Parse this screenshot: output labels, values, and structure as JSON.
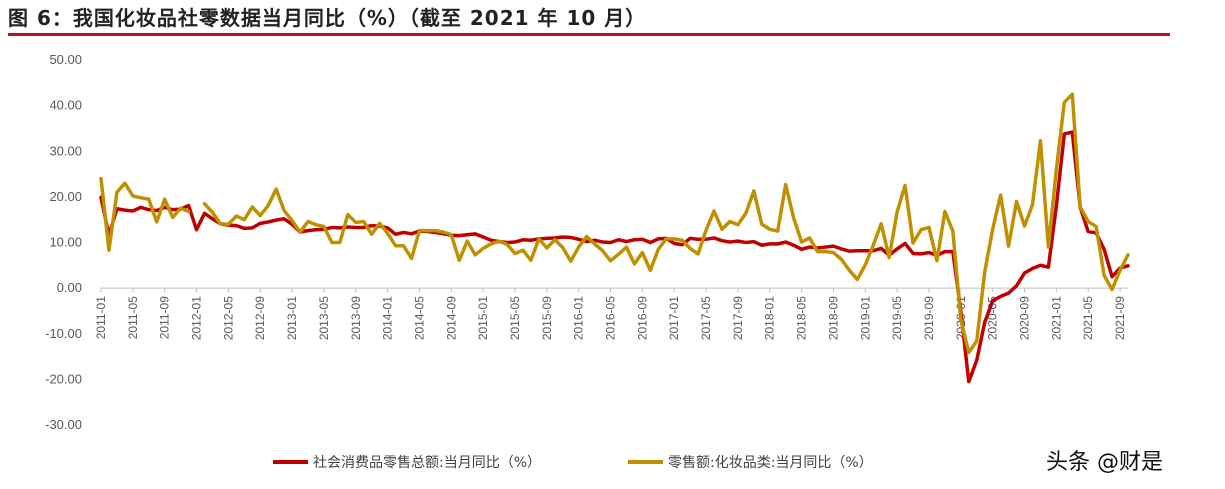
{
  "title": "图 6：我国化妆品社零数据当月同比（%）（截至 2021 年 10 月）",
  "watermark": "头条 @财是",
  "colors": {
    "title_rule": "#b3151b",
    "series_total": "#c00000",
    "series_cosmetics": "#bf9000",
    "axis": "#bfbfbf"
  },
  "chart_data": {
    "type": "line",
    "title": "",
    "xlabel": "",
    "ylabel": "",
    "ylim": [
      -30,
      50
    ],
    "y_ticks": [
      "50.00",
      "40.00",
      "30.00",
      "20.00",
      "10.00",
      "0.00",
      "-10.00",
      "-20.00",
      "-30.00"
    ],
    "grid": false,
    "legend_position": "bottom",
    "x_tick_labels": [
      "2011-01",
      "2011-05",
      "2011-09",
      "2012-01",
      "2012-05",
      "2012-09",
      "2013-01",
      "2013-05",
      "2013-09",
      "2014-01",
      "2014-05",
      "2014-09",
      "2015-01",
      "2015-05",
      "2015-09",
      "2016-01",
      "2016-05",
      "2016-09",
      "2017-01",
      "2017-05",
      "2017-09",
      "2018-01",
      "2018-05",
      "2018-09",
      "2019-01",
      "2019-05",
      "2019-09",
      "2020-01",
      "2020-05",
      "2020-09",
      "2021-01",
      "2021-05",
      "2021-09"
    ],
    "x_start": "2011-01",
    "x_end": "2021-10",
    "series": [
      {
        "name": "社会消费品零售总额:当月同比（%）",
        "color": "#c00000",
        "points": [
          [
            "2011-01",
            19.9
          ],
          [
            "2011-02",
            11.6
          ],
          [
            "2011-03",
            17.4
          ],
          [
            "2011-04",
            17.1
          ],
          [
            "2011-05",
            16.9
          ],
          [
            "2011-06",
            17.7
          ],
          [
            "2011-07",
            17.2
          ],
          [
            "2011-08",
            17.0
          ],
          [
            "2011-09",
            17.7
          ],
          [
            "2011-10",
            17.2
          ],
          [
            "2011-11",
            17.3
          ],
          [
            "2011-12",
            18.1
          ],
          [
            "2012-01",
            12.8
          ],
          [
            "2012-02",
            16.4
          ],
          [
            "2012-03",
            15.2
          ],
          [
            "2012-04",
            14.1
          ],
          [
            "2012-05",
            13.8
          ],
          [
            "2012-06",
            13.7
          ],
          [
            "2012-07",
            13.1
          ],
          [
            "2012-08",
            13.2
          ],
          [
            "2012-09",
            14.2
          ],
          [
            "2012-10",
            14.5
          ],
          [
            "2012-11",
            14.9
          ],
          [
            "2012-12",
            15.2
          ],
          [
            "2013-01",
            14.0
          ],
          [
            "2013-02",
            12.3
          ],
          [
            "2013-03",
            12.6
          ],
          [
            "2013-04",
            12.8
          ],
          [
            "2013-05",
            12.9
          ],
          [
            "2013-06",
            13.3
          ],
          [
            "2013-07",
            13.2
          ],
          [
            "2013-08",
            13.4
          ],
          [
            "2013-09",
            13.3
          ],
          [
            "2013-10",
            13.3
          ],
          [
            "2013-11",
            13.7
          ],
          [
            "2013-12",
            13.6
          ],
          [
            "2014-01",
            13.2
          ],
          [
            "2014-02",
            11.8
          ],
          [
            "2014-03",
            12.2
          ],
          [
            "2014-04",
            11.9
          ],
          [
            "2014-05",
            12.5
          ],
          [
            "2014-06",
            12.4
          ],
          [
            "2014-07",
            12.2
          ],
          [
            "2014-08",
            11.9
          ],
          [
            "2014-09",
            11.6
          ],
          [
            "2014-10",
            11.5
          ],
          [
            "2014-11",
            11.7
          ],
          [
            "2014-12",
            11.9
          ],
          [
            "2015-01",
            11.2
          ],
          [
            "2015-02",
            10.5
          ],
          [
            "2015-03",
            10.2
          ],
          [
            "2015-04",
            10.0
          ],
          [
            "2015-05",
            10.1
          ],
          [
            "2015-06",
            10.6
          ],
          [
            "2015-07",
            10.5
          ],
          [
            "2015-08",
            10.8
          ],
          [
            "2015-09",
            10.9
          ],
          [
            "2015-10",
            11.0
          ],
          [
            "2015-11",
            11.2
          ],
          [
            "2015-12",
            11.1
          ],
          [
            "2016-01",
            10.7
          ],
          [
            "2016-02",
            10.2
          ],
          [
            "2016-03",
            10.5
          ],
          [
            "2016-04",
            10.1
          ],
          [
            "2016-05",
            10.0
          ],
          [
            "2016-06",
            10.6
          ],
          [
            "2016-07",
            10.2
          ],
          [
            "2016-08",
            10.6
          ],
          [
            "2016-09",
            10.7
          ],
          [
            "2016-10",
            10.0
          ],
          [
            "2016-11",
            10.8
          ],
          [
            "2016-12",
            10.9
          ],
          [
            "2017-01",
            9.8
          ],
          [
            "2017-02",
            9.5
          ],
          [
            "2017-03",
            10.9
          ],
          [
            "2017-04",
            10.7
          ],
          [
            "2017-05",
            10.7
          ],
          [
            "2017-06",
            11.0
          ],
          [
            "2017-07",
            10.4
          ],
          [
            "2017-08",
            10.1
          ],
          [
            "2017-09",
            10.3
          ],
          [
            "2017-10",
            10.0
          ],
          [
            "2017-11",
            10.2
          ],
          [
            "2017-12",
            9.4
          ],
          [
            "2018-01",
            9.7
          ],
          [
            "2018-02",
            9.7
          ],
          [
            "2018-03",
            10.1
          ],
          [
            "2018-04",
            9.4
          ],
          [
            "2018-05",
            8.5
          ],
          [
            "2018-06",
            9.0
          ],
          [
            "2018-07",
            8.8
          ],
          [
            "2018-08",
            9.0
          ],
          [
            "2018-09",
            9.2
          ],
          [
            "2018-10",
            8.6
          ],
          [
            "2018-11",
            8.1
          ],
          [
            "2018-12",
            8.2
          ],
          [
            "2019-01",
            8.2
          ],
          [
            "2019-02",
            8.2
          ],
          [
            "2019-03",
            8.7
          ],
          [
            "2019-04",
            7.2
          ],
          [
            "2019-05",
            8.6
          ],
          [
            "2019-06",
            9.8
          ],
          [
            "2019-07",
            7.6
          ],
          [
            "2019-08",
            7.5
          ],
          [
            "2019-09",
            7.8
          ],
          [
            "2019-10",
            7.2
          ],
          [
            "2019-11",
            8.0
          ],
          [
            "2019-12",
            8.0
          ],
          [
            "2020-01",
            -5.0
          ],
          [
            "2020-02",
            -20.5
          ],
          [
            "2020-03",
            -15.8
          ],
          [
            "2020-04",
            -7.5
          ],
          [
            "2020-05",
            -2.8
          ],
          [
            "2020-06",
            -1.8
          ],
          [
            "2020-07",
            -1.1
          ],
          [
            "2020-08",
            0.5
          ],
          [
            "2020-09",
            3.3
          ],
          [
            "2020-10",
            4.3
          ],
          [
            "2020-11",
            5.0
          ],
          [
            "2020-12",
            4.6
          ],
          [
            "2021-01",
            18.0
          ],
          [
            "2021-02",
            33.8
          ],
          [
            "2021-03",
            34.2
          ],
          [
            "2021-04",
            17.7
          ],
          [
            "2021-05",
            12.4
          ],
          [
            "2021-06",
            12.1
          ],
          [
            "2021-07",
            8.5
          ],
          [
            "2021-08",
            2.5
          ],
          [
            "2021-09",
            4.4
          ],
          [
            "2021-10",
            4.9
          ]
        ]
      },
      {
        "name": "零售额:化妆品类:当月同比（%）",
        "color": "#bf9000",
        "points": [
          [
            "2011-01",
            24.0
          ],
          [
            "2011-02",
            8.3
          ],
          [
            "2011-03",
            21.0
          ],
          [
            "2011-04",
            23.0
          ],
          [
            "2011-05",
            20.2
          ],
          [
            "2011-06",
            19.8
          ],
          [
            "2011-07",
            19.5
          ],
          [
            "2011-08",
            14.5
          ],
          [
            "2011-09",
            19.5
          ],
          [
            "2011-10",
            15.5
          ],
          [
            "2011-11",
            17.5
          ],
          [
            "2011-12",
            16.8
          ],
          [
            "2012-01",
            null
          ],
          [
            "2012-02",
            18.5
          ],
          [
            "2012-03",
            16.6
          ],
          [
            "2012-04",
            14.1
          ],
          [
            "2012-05",
            14.0
          ],
          [
            "2012-06",
            15.8
          ],
          [
            "2012-07",
            15.0
          ],
          [
            "2012-08",
            17.8
          ],
          [
            "2012-09",
            15.9
          ],
          [
            "2012-10",
            18.1
          ],
          [
            "2012-11",
            21.7
          ],
          [
            "2012-12",
            17.0
          ],
          [
            "2013-01",
            14.8
          ],
          [
            "2013-02",
            12.3
          ],
          [
            "2013-03",
            14.6
          ],
          [
            "2013-04",
            13.9
          ],
          [
            "2013-05",
            13.5
          ],
          [
            "2013-06",
            10.0
          ],
          [
            "2013-07",
            10.0
          ],
          [
            "2013-08",
            16.1
          ],
          [
            "2013-09",
            14.4
          ],
          [
            "2013-10",
            14.6
          ],
          [
            "2013-11",
            11.8
          ],
          [
            "2013-12",
            14.2
          ],
          [
            "2014-01",
            12.0
          ],
          [
            "2014-02",
            9.3
          ],
          [
            "2014-03",
            9.3
          ],
          [
            "2014-04",
            6.5
          ],
          [
            "2014-05",
            12.6
          ],
          [
            "2014-06",
            12.6
          ],
          [
            "2014-07",
            12.6
          ],
          [
            "2014-08",
            12.3
          ],
          [
            "2014-09",
            11.7
          ],
          [
            "2014-10",
            6.1
          ],
          [
            "2014-11",
            10.3
          ],
          [
            "2014-12",
            7.3
          ],
          [
            "2015-01",
            8.7
          ],
          [
            "2015-02",
            9.7
          ],
          [
            "2015-03",
            10.3
          ],
          [
            "2015-04",
            9.6
          ],
          [
            "2015-05",
            7.6
          ],
          [
            "2015-06",
            8.3
          ],
          [
            "2015-07",
            6.1
          ],
          [
            "2015-08",
            10.8
          ],
          [
            "2015-09",
            8.8
          ],
          [
            "2015-10",
            10.6
          ],
          [
            "2015-11",
            8.9
          ],
          [
            "2015-12",
            5.9
          ],
          [
            "2016-01",
            9.0
          ],
          [
            "2016-02",
            11.3
          ],
          [
            "2016-03",
            9.7
          ],
          [
            "2016-04",
            8.2
          ],
          [
            "2016-05",
            6.0
          ],
          [
            "2016-06",
            7.4
          ],
          [
            "2016-07",
            9.0
          ],
          [
            "2016-08",
            5.3
          ],
          [
            "2016-09",
            7.8
          ],
          [
            "2016-10",
            3.9
          ],
          [
            "2016-11",
            8.5
          ],
          [
            "2016-12",
            10.8
          ],
          [
            "2017-01",
            10.8
          ],
          [
            "2017-02",
            10.5
          ],
          [
            "2017-03",
            8.7
          ],
          [
            "2017-04",
            7.5
          ],
          [
            "2017-05",
            12.7
          ],
          [
            "2017-06",
            16.9
          ],
          [
            "2017-07",
            12.9
          ],
          [
            "2017-08",
            14.6
          ],
          [
            "2017-09",
            13.9
          ],
          [
            "2017-10",
            16.4
          ],
          [
            "2017-11",
            21.3
          ],
          [
            "2017-12",
            14.0
          ],
          [
            "2018-01",
            12.9
          ],
          [
            "2018-02",
            12.5
          ],
          [
            "2018-03",
            22.7
          ],
          [
            "2018-04",
            15.4
          ],
          [
            "2018-05",
            10.1
          ],
          [
            "2018-06",
            11.0
          ],
          [
            "2018-07",
            8.0
          ],
          [
            "2018-08",
            8.0
          ],
          [
            "2018-09",
            7.8
          ],
          [
            "2018-10",
            6.3
          ],
          [
            "2018-11",
            3.9
          ],
          [
            "2018-12",
            1.9
          ],
          [
            "2019-01",
            5.1
          ],
          [
            "2019-02",
            9.4
          ],
          [
            "2019-03",
            14.1
          ],
          [
            "2019-04",
            6.7
          ],
          [
            "2019-05",
            16.7
          ],
          [
            "2019-06",
            22.5
          ],
          [
            "2019-07",
            9.9
          ],
          [
            "2019-08",
            12.8
          ],
          [
            "2019-09",
            13.3
          ],
          [
            "2019-10",
            6.0
          ],
          [
            "2019-11",
            16.8
          ],
          [
            "2019-12",
            12.5
          ],
          [
            "2020-01",
            -7.0
          ],
          [
            "2020-02",
            -14.1
          ],
          [
            "2020-03",
            -11.6
          ],
          [
            "2020-04",
            3.5
          ],
          [
            "2020-05",
            12.9
          ],
          [
            "2020-06",
            20.4
          ],
          [
            "2020-07",
            9.2
          ],
          [
            "2020-08",
            19.0
          ],
          [
            "2020-09",
            13.6
          ],
          [
            "2020-10",
            18.3
          ],
          [
            "2020-11",
            32.3
          ],
          [
            "2020-12",
            9.0
          ],
          [
            "2021-01",
            26.0
          ],
          [
            "2021-02",
            40.7
          ],
          [
            "2021-03",
            42.5
          ],
          [
            "2021-04",
            17.8
          ],
          [
            "2021-05",
            14.6
          ],
          [
            "2021-06",
            13.5
          ],
          [
            "2021-07",
            2.8
          ],
          [
            "2021-08",
            -0.3
          ],
          [
            "2021-09",
            3.9
          ],
          [
            "2021-10",
            7.3
          ]
        ]
      }
    ]
  }
}
